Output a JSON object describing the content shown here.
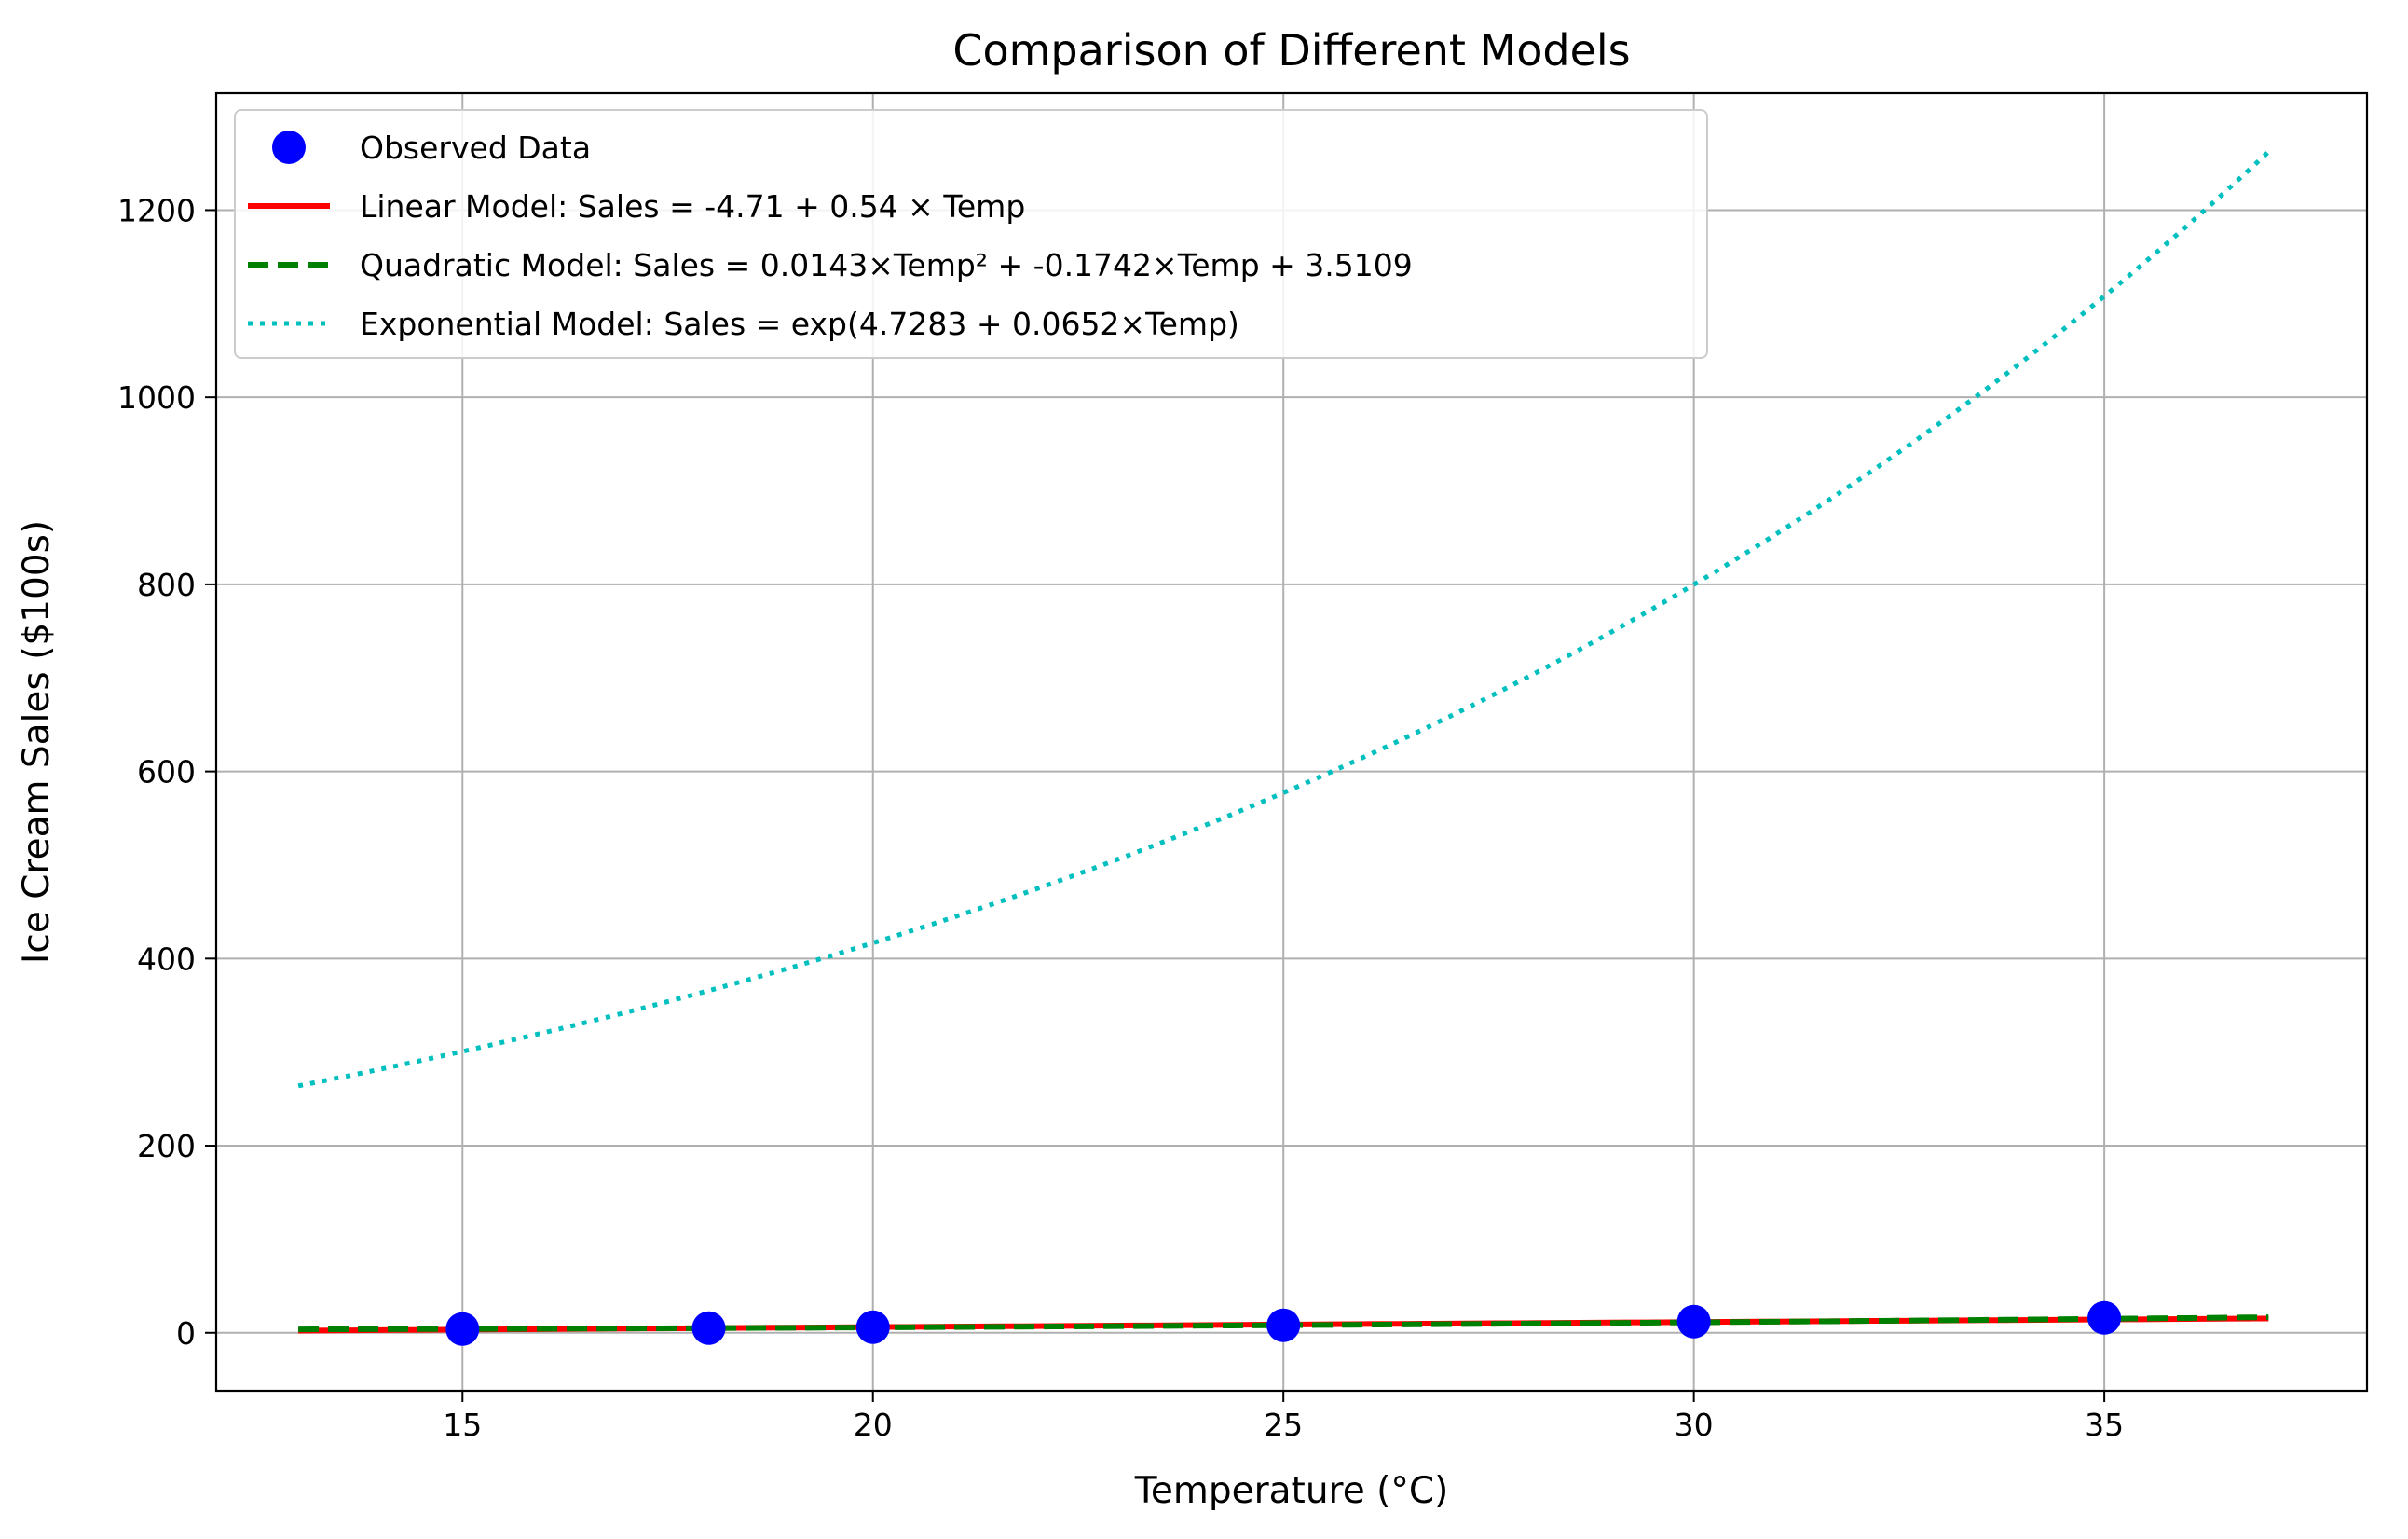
{
  "chart_data": {
    "type": "scatter+line",
    "title": "Comparison of Different Models",
    "xlabel": "Temperature (°C)",
    "ylabel": "Ice Cream Sales ($100s)",
    "xlim": [
      12,
      38.2
    ],
    "ylim": [
      -62,
      1325
    ],
    "xticks": [
      15,
      20,
      25,
      30,
      35
    ],
    "yticks": [
      0,
      200,
      400,
      600,
      800,
      1000,
      1200
    ],
    "grid": true,
    "legend_position": "upper-left",
    "observed": {
      "name": "Observed Data",
      "color": "#0000ff",
      "x": [
        15,
        18,
        20,
        25,
        30,
        35
      ],
      "y": [
        4,
        5,
        6,
        8,
        12,
        16
      ]
    },
    "series": [
      {
        "name": "Linear Model: Sales = -4.71 + 0.54 × Temp",
        "color": "#ff0000",
        "style": "solid",
        "model": "linear",
        "coef": {
          "a": -4.71,
          "b": 0.54
        },
        "x_range": [
          13,
          37
        ]
      },
      {
        "name": "Quadratic Model: Sales = 0.0143×Temp² + -0.1742×Temp + 3.5109",
        "color": "#008000",
        "style": "dashed",
        "model": "quadratic",
        "coef": {
          "a": 0.0143,
          "b": -0.1742,
          "c": 3.5109
        },
        "x_range": [
          13,
          37
        ]
      },
      {
        "name": "Exponential Model: Sales = exp(4.7283 + 0.0652×Temp)",
        "color": "#00bfbf",
        "style": "dotted",
        "model": "exponential",
        "coef": {
          "a": 4.7283,
          "b": 0.0652
        },
        "x_range": [
          13,
          37
        ]
      }
    ]
  }
}
